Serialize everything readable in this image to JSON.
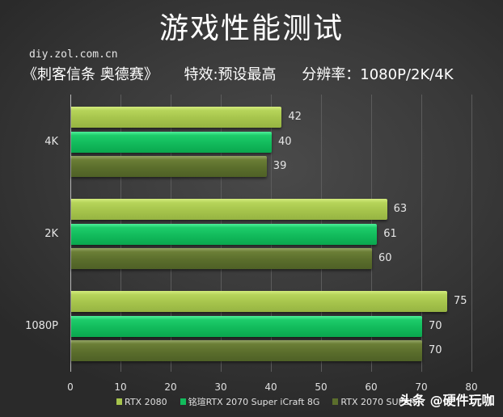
{
  "header": {
    "title": "游戏性能测试",
    "source": "diy.zol.com.cn",
    "subtitle_game": "《刺客信条 奥德赛》",
    "subtitle_settings": "特效:预设最高",
    "subtitle_resolution": "分辨率：1080P/2K/4K"
  },
  "watermark": "头条 @硬件玩咖",
  "colors": {
    "series0": "#a6c44c",
    "series1": "#12bb5c",
    "series2": "#5b6e2c",
    "background": "#3b3b3b"
  },
  "chart_data": {
    "type": "bar",
    "orientation": "horizontal",
    "title": "游戏性能测试",
    "subtitle": "《刺客信条 奥德赛》 特效:预设最高 分辨率：1080P/2K/4K",
    "categories": [
      "4K",
      "2K",
      "1080P"
    ],
    "series": [
      {
        "name": "RTX 2080",
        "values": [
          42,
          63,
          75
        ]
      },
      {
        "name": "铭瑄RTX 2070 Super iCraft 8G",
        "values": [
          40,
          61,
          70
        ]
      },
      {
        "name": "RTX 2070 SUPER",
        "values": [
          39,
          60,
          70
        ]
      }
    ],
    "xlabel": "",
    "ylabel": "",
    "xlim": [
      0,
      80
    ],
    "xticks": [
      "0",
      "10",
      "20",
      "30",
      "40",
      "50",
      "60",
      "70",
      "80"
    ],
    "grid": true,
    "legend_position": "bottom",
    "data_labels": true
  }
}
